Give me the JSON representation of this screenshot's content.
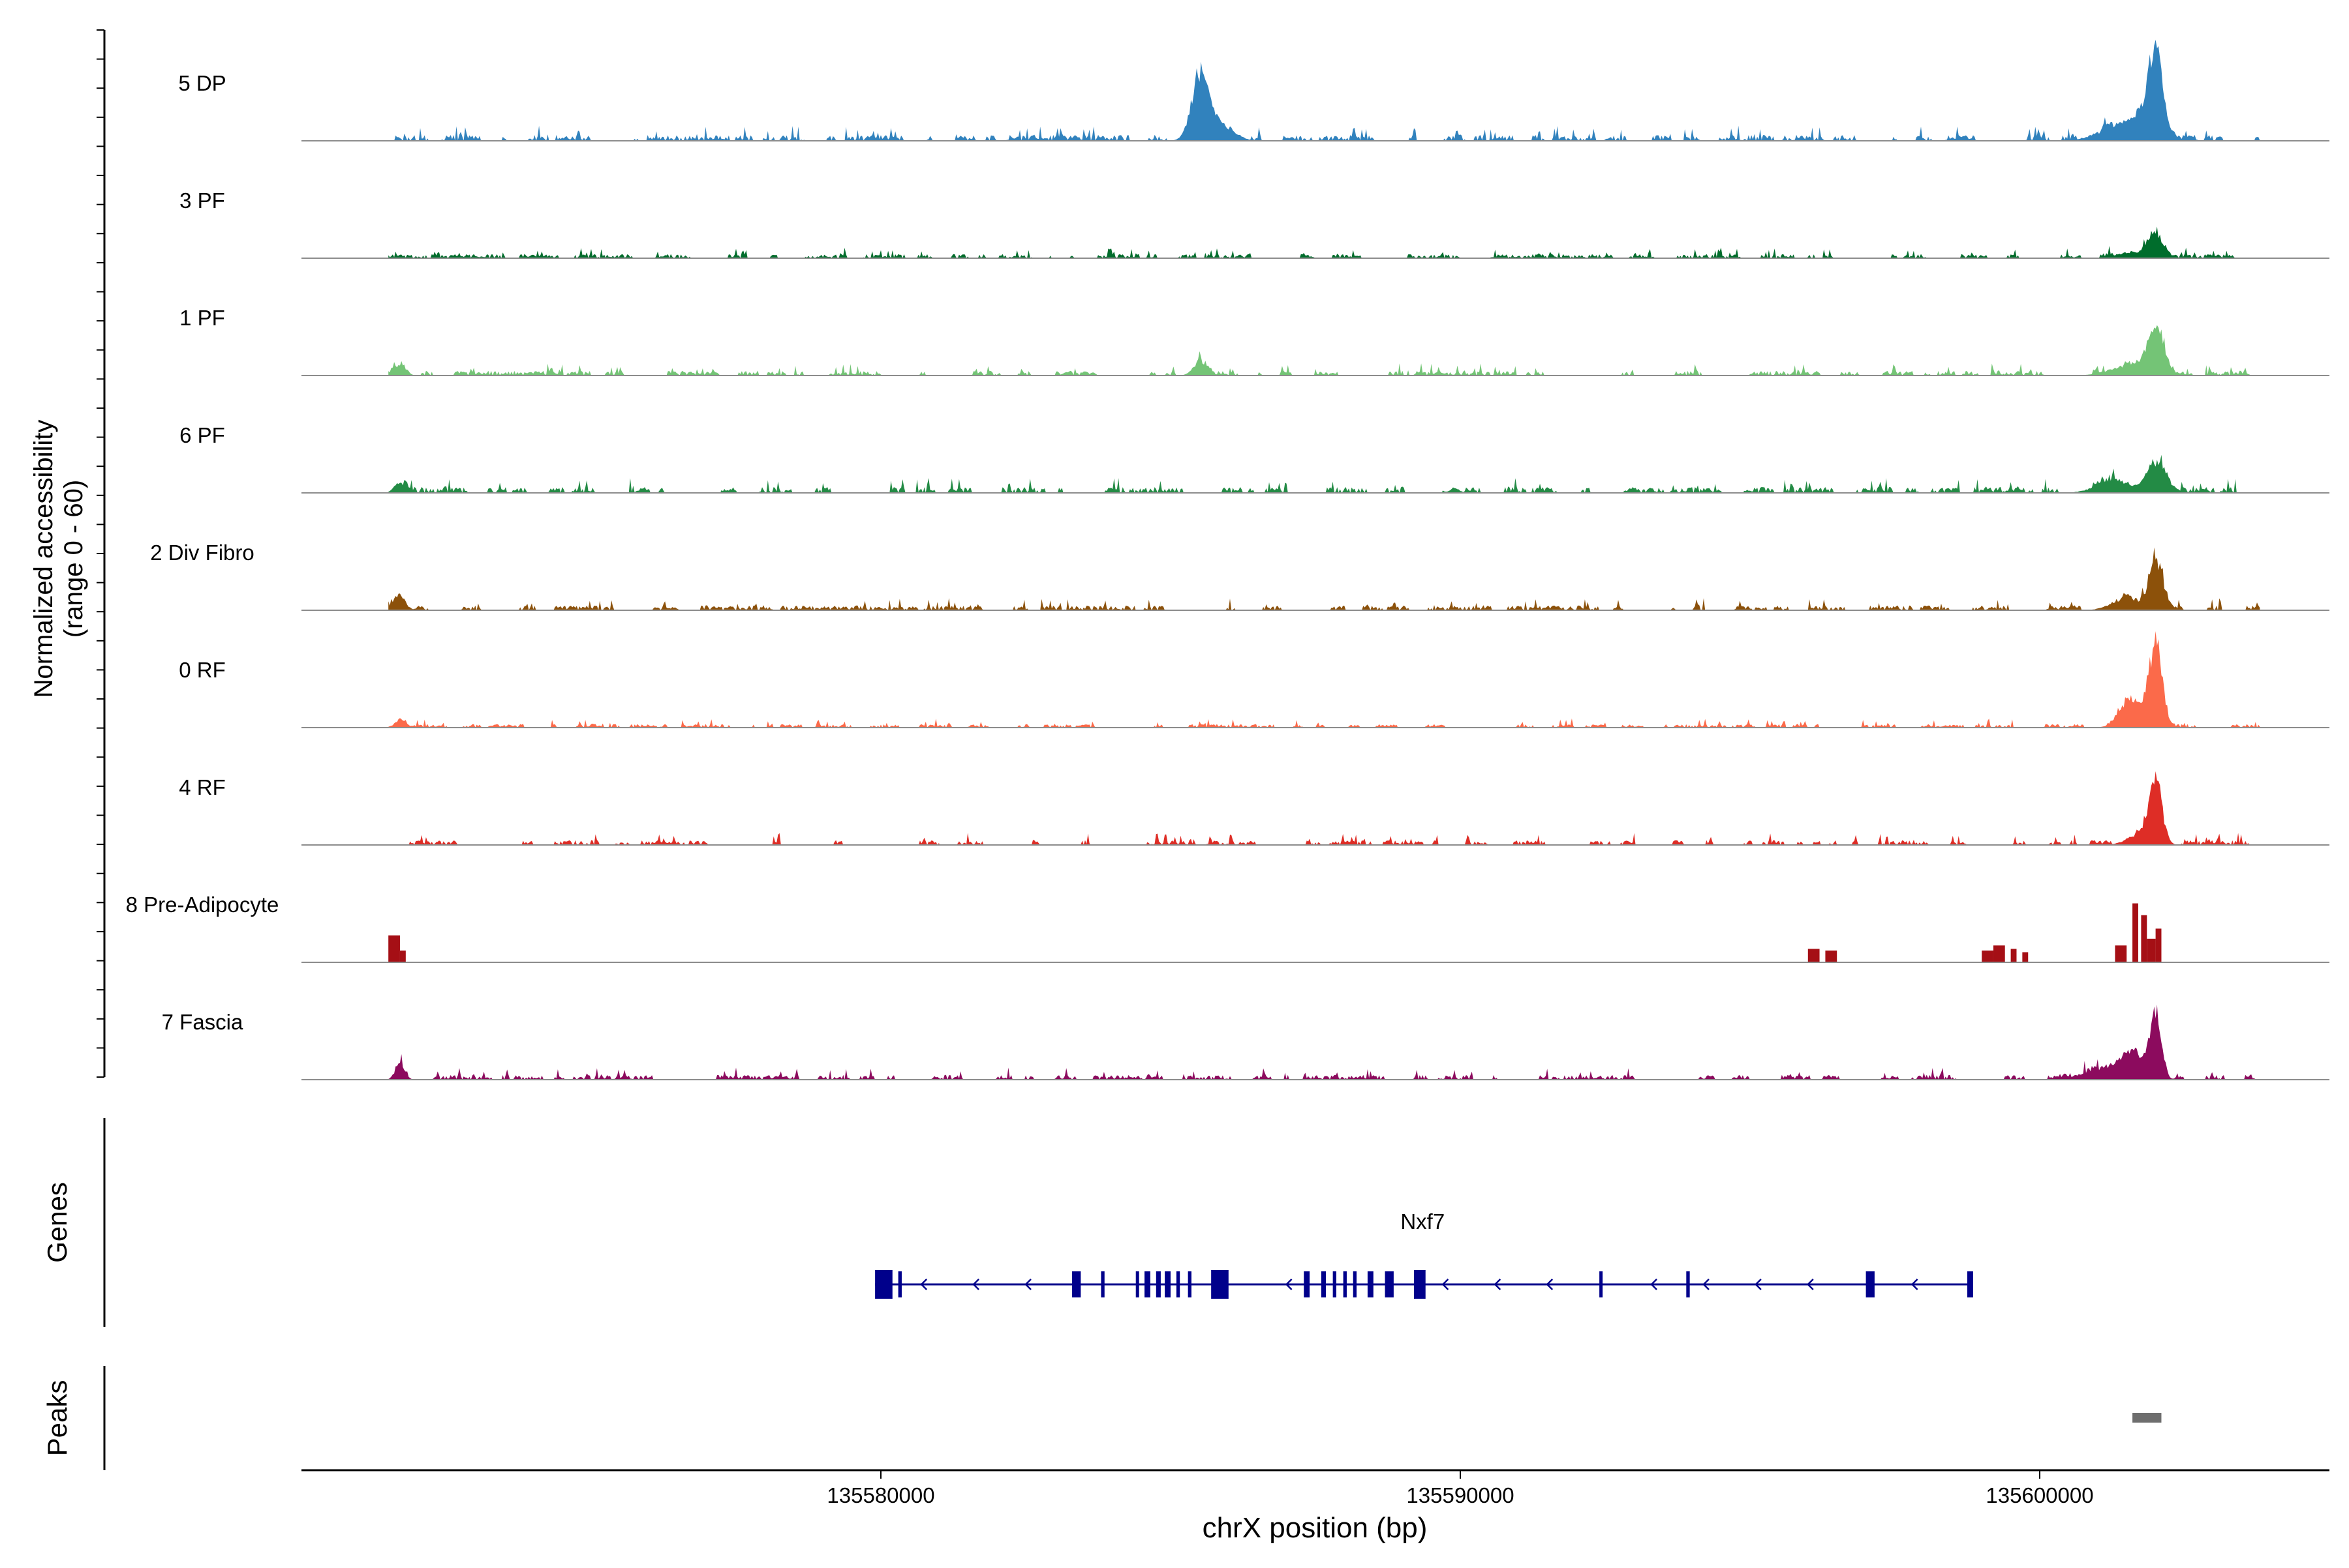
{
  "chart_data": {
    "type": "area",
    "title": "",
    "xlabel": "chrX position (bp)",
    "ylabel_line1": "Normalized accessibility",
    "ylabel_line2": "(range 0 - 60)",
    "genes_label": "Genes",
    "peaks_label": "Peaks",
    "xlim": [
      135570000,
      135605000
    ],
    "ylim": [
      0,
      60
    ],
    "x_ticks": [
      135580000,
      135590000,
      135600000
    ],
    "x_tick_labels": [
      "135580000",
      "135590000",
      "135600000"
    ],
    "track_start": 135571500,
    "series": [
      {
        "name": "5 DP",
        "color": "#3182bd",
        "baseline_amp": 5,
        "peaks": [
          [
            135585500,
            38,
            140
          ],
          [
            135585800,
            12,
            250
          ],
          [
            135602000,
            55,
            120
          ],
          [
            135601700,
            15,
            250
          ],
          [
            135601200,
            6,
            300
          ]
        ]
      },
      {
        "name": "3 PF",
        "color": "#006d2c",
        "baseline_amp": 3.5,
        "peaks": [
          [
            135602000,
            14,
            120
          ],
          [
            135601600,
            4,
            250
          ],
          [
            135604500,
            3,
            100
          ]
        ]
      },
      {
        "name": "1 PF",
        "color": "#74c476",
        "baseline_amp": 4,
        "peaks": [
          [
            135585500,
            8,
            120
          ],
          [
            135602000,
            27,
            150
          ],
          [
            135601500,
            6,
            300
          ],
          [
            135571700,
            6,
            100
          ]
        ]
      },
      {
        "name": "6 PF",
        "color": "#238b45",
        "baseline_amp": 5,
        "peaks": [
          [
            135602000,
            20,
            150
          ],
          [
            135601300,
            8,
            300
          ],
          [
            135571700,
            6,
            100
          ]
        ]
      },
      {
        "name": "2 Div Fibro",
        "color": "#8c510a",
        "baseline_amp": 4,
        "peaks": [
          [
            135602000,
            33,
            110
          ],
          [
            135601500,
            8,
            250
          ],
          [
            135571700,
            8,
            100
          ]
        ]
      },
      {
        "name": "0 RF",
        "color": "#fb6a4a",
        "baseline_amp": 3,
        "peaks": [
          [
            135602000,
            52,
            110
          ],
          [
            135601600,
            18,
            200
          ],
          [
            135571700,
            4,
            100
          ]
        ]
      },
      {
        "name": "4 RF",
        "color": "#de2d26",
        "baseline_amp": 4,
        "peaks": [
          [
            135602000,
            40,
            110
          ],
          [
            135601700,
            6,
            200
          ]
        ]
      },
      {
        "name": "8 Pre-Adipocyte",
        "color": "#a50f15",
        "baseline_amp": 0,
        "bars": [
          [
            135571500,
            135571700,
            16
          ],
          [
            135571700,
            135571800,
            7
          ],
          [
            135596000,
            135596200,
            8
          ],
          [
            135596300,
            135596500,
            7
          ],
          [
            135599000,
            135599200,
            7
          ],
          [
            135599200,
            135599400,
            10
          ],
          [
            135599500,
            135599600,
            8
          ],
          [
            135599700,
            135599800,
            6
          ],
          [
            135601300,
            135601500,
            10
          ],
          [
            135601600,
            135601700,
            35
          ],
          [
            135601750,
            135601850,
            28
          ],
          [
            135601850,
            135602000,
            14
          ],
          [
            135602000,
            135602100,
            20
          ]
        ]
      },
      {
        "name": "7 Fascia",
        "color": "#8c0b5e",
        "baseline_amp": 4,
        "peaks": [
          [
            135602000,
            42,
            100
          ],
          [
            135601600,
            16,
            200
          ],
          [
            135601000,
            6,
            300
          ],
          [
            135571700,
            10,
            80
          ]
        ]
      }
    ],
    "gene": {
      "name": "Nxf7",
      "strand": "-",
      "color": "#00008b",
      "start": 135579900,
      "end": 135598800,
      "exons": [
        [
          135579900,
          135580200
        ],
        [
          135580300,
          135580360
        ],
        [
          135583300,
          135583450
        ],
        [
          135583800,
          135583860
        ],
        [
          135584400,
          135584450
        ],
        [
          135584550,
          135584650
        ],
        [
          135584750,
          135584830
        ],
        [
          135584900,
          135585000
        ],
        [
          135585100,
          135585160
        ],
        [
          135585300,
          135585360
        ],
        [
          135585700,
          135586000
        ],
        [
          135587300,
          135587400
        ],
        [
          135587600,
          135587680
        ],
        [
          135587800,
          135587860
        ],
        [
          135587980,
          135588040
        ],
        [
          135588150,
          135588210
        ],
        [
          135588400,
          135588500
        ],
        [
          135588700,
          135588850
        ],
        [
          135589200,
          135589400
        ],
        [
          135592400,
          135592420
        ],
        [
          135593900,
          135593960
        ],
        [
          135597000,
          135597150
        ],
        [
          135598750,
          135598850
        ]
      ]
    },
    "peaks_track": [
      [
        135601600,
        135602100
      ]
    ]
  }
}
